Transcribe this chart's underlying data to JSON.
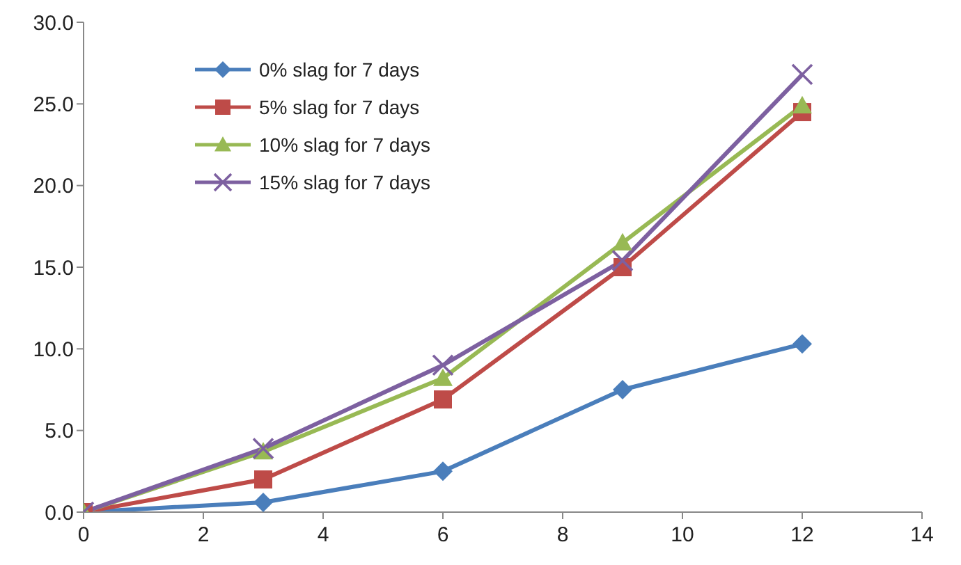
{
  "chart_data": {
    "type": "line",
    "x": [
      0,
      3,
      6,
      9,
      12
    ],
    "xlim": [
      0,
      14
    ],
    "xticks": [
      0,
      2,
      4,
      6,
      8,
      10,
      12,
      14
    ],
    "ylim": [
      0,
      30
    ],
    "yticks": [
      {
        "value": 0,
        "label": "0.0"
      },
      {
        "value": 5,
        "label": "5.0"
      },
      {
        "value": 10,
        "label": "10.0"
      },
      {
        "value": 15,
        "label": "15.0"
      },
      {
        "value": 20,
        "label": "20.0"
      },
      {
        "value": 25,
        "label": "25.0"
      },
      {
        "value": 30,
        "label": "30.0"
      }
    ],
    "grid": false,
    "legend": "top left",
    "series": [
      {
        "name": "0% slag for 7 days",
        "color": "#4a7ebb",
        "marker": "diamond",
        "values": [
          0,
          0.6,
          2.5,
          7.5,
          10.3
        ]
      },
      {
        "name": "5% slag for 7 days",
        "color": "#be4b48",
        "marker": "square",
        "values": [
          0,
          2.0,
          6.9,
          15.0,
          24.5
        ]
      },
      {
        "name": "10% slag for 7 days",
        "color": "#98b954",
        "marker": "triangle",
        "values": [
          0,
          3.7,
          8.2,
          16.5,
          24.9
        ]
      },
      {
        "name": "15% slag for 7 days",
        "color": "#7d60a0",
        "marker": "cross",
        "values": [
          0,
          3.9,
          9.0,
          15.4,
          26.8
        ]
      }
    ]
  }
}
